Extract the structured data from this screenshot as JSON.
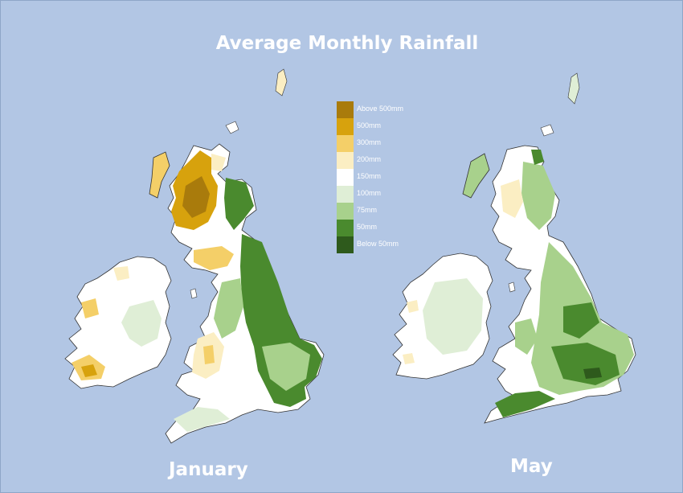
{
  "title": "Average Monthly Rainfall",
  "maps": [
    {
      "id": "january",
      "label": "January"
    },
    {
      "id": "may",
      "label": "May"
    }
  ],
  "legend": [
    {
      "label": "Above 500mm",
      "color": "#a97b0c"
    },
    {
      "label": "500mm",
      "color": "#d7a20d"
    },
    {
      "label": "300mm",
      "color": "#f4cf68"
    },
    {
      "label": "200mm",
      "color": "#fbeec3"
    },
    {
      "label": "150mm",
      "color": "#ffffff"
    },
    {
      "label": "100mm",
      "color": "#dfeed6"
    },
    {
      "label": "75mm",
      "color": "#a8d18c"
    },
    {
      "label": "50mm",
      "color": "#4a8a2e"
    },
    {
      "label": "Below 50mm",
      "color": "#2e5a1c"
    }
  ],
  "colors": {
    "sea": "#b2c6e4",
    "coastline": "#333333"
  }
}
